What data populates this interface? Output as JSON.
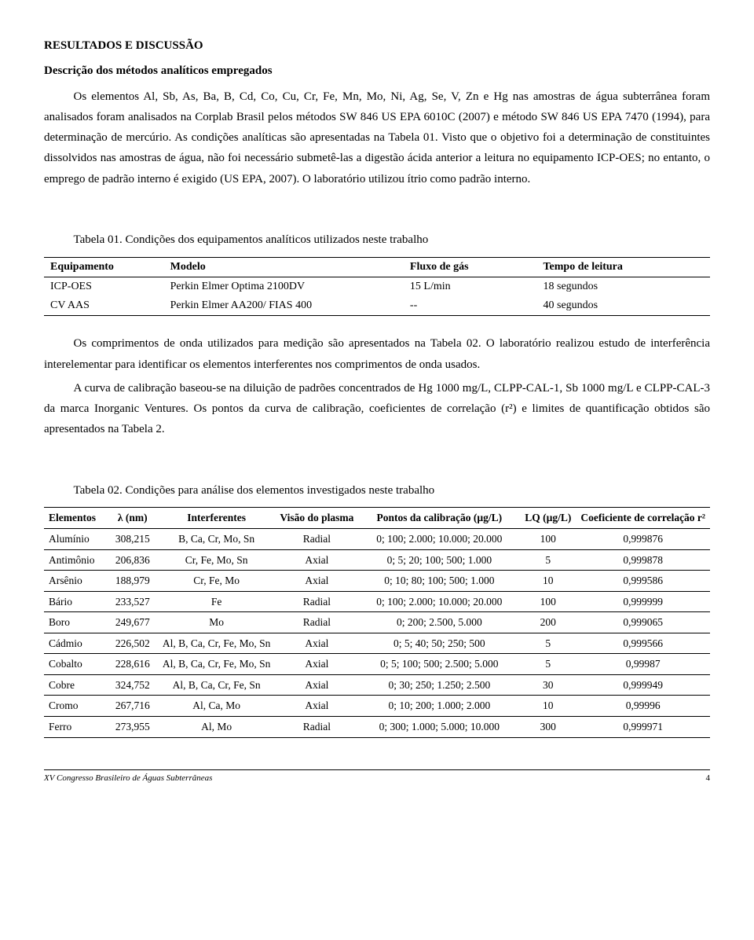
{
  "section_heading": "RESULTADOS E DISCUSSÃO",
  "sub_heading": "Descrição dos métodos analíticos empregados",
  "para1": "Os elementos Al, Sb, As, Ba, B, Cd, Co, Cu, Cr, Fe, Mn, Mo, Ni, Ag, Se, V, Zn e Hg nas amostras de água subterrânea foram analisados foram analisados na Corplab Brasil pelos métodos SW 846 US EPA 6010C (2007) e método SW 846 US EPA 7470 (1994), para determinação de mercúrio. As condições analíticas são apresentadas na Tabela 01. Visto que o objetivo foi a determinação de constituintes dissolvidos nas amostras de água, não foi necessário submetê-las a digestão ácida anterior a leitura no equipamento ICP-OES; no entanto, o emprego de padrão interno é exigido (US EPA, 2007). O laboratório utilizou ítrio como padrão interno.",
  "table1_caption": "Tabela 01. Condições dos equipamentos analíticos utilizados neste trabalho",
  "table1": {
    "headers": [
      "Equipamento",
      "Modelo",
      "Fluxo de gás",
      "Tempo de leitura"
    ],
    "rows": [
      [
        "ICP-OES",
        "Perkin Elmer Optima 2100DV",
        "15 L/min",
        "18 segundos"
      ],
      [
        "CV AAS",
        "Perkin Elmer AA200/ FIAS 400",
        "--",
        "40 segundos"
      ]
    ],
    "col_widths": [
      "18%",
      "36%",
      "20%",
      "26%"
    ]
  },
  "para2": "Os comprimentos de onda utilizados para medição são apresentados na Tabela 02. O laboratório realizou estudo de interferência interelementar para identificar os elementos interferentes nos comprimentos de onda usados.",
  "para3": "A curva de calibração baseou-se na diluição de padrões concentrados de Hg 1000 mg/L, CLPP-CAL-1, Sb 1000 mg/L e CLPP-CAL-3 da marca Inorganic Ventures. Os pontos da curva de calibração, coeficientes de correlação (r²) e limites de quantificação obtidos são apresentados na Tabela 2.",
  "table2_caption": "Tabela 02. Condições para análise dos elementos investigados neste trabalho",
  "table2": {
    "headers": [
      "Elementos",
      "λ (nm)",
      "Interferentes",
      "Visão do plasma",
      "Pontos da calibração (µg/L)",
      "LQ (µg/L)",
      "Coeficiente de correlação r²"
    ],
    "rows": [
      [
        "Alumínio",
        "308,215",
        "B, Ca, Cr, Mo, Sn",
        "Radial",
        "0; 100; 2.000; 10.000; 20.000",
        "100",
        "0,999876"
      ],
      [
        "Antimônio",
        "206,836",
        "Cr, Fe, Mo, Sn",
        "Axial",
        "0; 5; 20; 100; 500; 1.000",
        "5",
        "0,999878"
      ],
      [
        "Arsênio",
        "188,979",
        "Cr, Fe, Mo",
        "Axial",
        "0; 10; 80; 100; 500; 1.000",
        "10",
        "0,999586"
      ],
      [
        "Bário",
        "233,527",
        "Fe",
        "Radial",
        "0; 100; 2.000; 10.000; 20.000",
        "100",
        "0,999999"
      ],
      [
        "Boro",
        "249,677",
        "Mo",
        "Radial",
        "0; 200; 2.500, 5.000",
        "200",
        "0,999065"
      ],
      [
        "Cádmio",
        "226,502",
        "Al, B, Ca, Cr, Fe, Mo, Sn",
        "Axial",
        "0; 5; 40; 50; 250; 500",
        "5",
        "0,999566"
      ],
      [
        "Cobalto",
        "228,616",
        "Al, B, Ca, Cr, Fe, Mo, Sn",
        "Axial",
        "0; 5; 100; 500; 2.500; 5.000",
        "5",
        "0,99987"
      ],
      [
        "Cobre",
        "324,752",
        "Al, B, Ca, Cr, Fe, Sn",
        "Axial",
        "0; 30; 250; 1.250; 2.500",
        "30",
        "0,999949"
      ],
      [
        "Cromo",
        "267,716",
        "Al, Ca, Mo",
        "Axial",
        "0; 10; 200; 1.000; 2.000",
        "10",
        "0,99996"
      ],
      [
        "Ferro",
        "273,955",
        "Al, Mo",
        "Radial",
        "0; 300; 1.000; 5.000; 10.000",
        "300",
        "0,999971"
      ]
    ],
    "col_widths": [
      "11%",
      "9%",
      "17%",
      "9%",
      "30%",
      "8%",
      "16%"
    ]
  },
  "footer_left": "XV Congresso Brasileiro de Águas Subterrâneas",
  "footer_page": "4"
}
